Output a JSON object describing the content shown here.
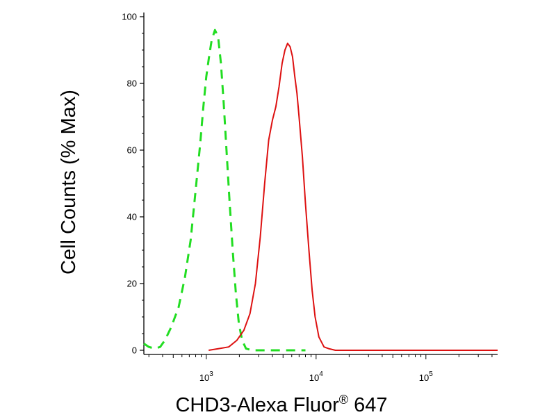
{
  "chart_data": {
    "type": "line",
    "title": "",
    "xlabel": "CHD3-Alexa Fluor",
    "xlabel_superscript": "®",
    "xlabel_suffix": " 647",
    "ylabel": "Cell Counts (% Max)",
    "x_scale": "log",
    "xlim": [
      270,
      450000
    ],
    "ylim": [
      0,
      100
    ],
    "y_ticks": [
      "0",
      "20",
      "40",
      "60",
      "80",
      "100"
    ],
    "x_ticks": [
      {
        "value": 1000,
        "base": "10",
        "exp": "3"
      },
      {
        "value": 10000,
        "base": "10",
        "exp": "4"
      },
      {
        "value": 100000,
        "base": "10",
        "exp": "5"
      }
    ],
    "grid": false,
    "legend": "none",
    "series": [
      {
        "style": "dashed",
        "color": "#22dd22",
        "points": [
          [
            270,
            2
          ],
          [
            300,
            1
          ],
          [
            340,
            0.5
          ],
          [
            380,
            1
          ],
          [
            420,
            3
          ],
          [
            480,
            7
          ],
          [
            560,
            13
          ],
          [
            640,
            22
          ],
          [
            720,
            33
          ],
          [
            800,
            48
          ],
          [
            880,
            62
          ],
          [
            940,
            73
          ],
          [
            1000,
            82
          ],
          [
            1060,
            88
          ],
          [
            1120,
            93
          ],
          [
            1200,
            96
          ],
          [
            1280,
            94
          ],
          [
            1360,
            86
          ],
          [
            1440,
            74
          ],
          [
            1520,
            61
          ],
          [
            1620,
            46
          ],
          [
            1740,
            30
          ],
          [
            1860,
            17
          ],
          [
            1980,
            8
          ],
          [
            2120,
            3
          ],
          [
            2300,
            0.5
          ],
          [
            2600,
            0
          ],
          [
            5000,
            0
          ],
          [
            8000,
            0
          ]
        ]
      },
      {
        "style": "solid",
        "color": "#dd1111",
        "points": [
          [
            1050,
            0
          ],
          [
            1300,
            0.5
          ],
          [
            1600,
            1
          ],
          [
            1900,
            3
          ],
          [
            2200,
            6
          ],
          [
            2500,
            11
          ],
          [
            2800,
            20
          ],
          [
            3100,
            34
          ],
          [
            3400,
            50
          ],
          [
            3700,
            63
          ],
          [
            4000,
            69
          ],
          [
            4300,
            73
          ],
          [
            4600,
            79
          ],
          [
            4900,
            86
          ],
          [
            5200,
            90
          ],
          [
            5500,
            92
          ],
          [
            5800,
            91
          ],
          [
            6100,
            88
          ],
          [
            6400,
            82
          ],
          [
            6700,
            77
          ],
          [
            7000,
            70
          ],
          [
            7500,
            58
          ],
          [
            8000,
            44
          ],
          [
            8600,
            30
          ],
          [
            9200,
            18
          ],
          [
            9800,
            10
          ],
          [
            10600,
            4
          ],
          [
            11800,
            1
          ],
          [
            13000,
            0.5
          ],
          [
            15000,
            0
          ],
          [
            30000,
            0
          ],
          [
            100000,
            0
          ],
          [
            450000,
            0
          ]
        ]
      }
    ]
  }
}
